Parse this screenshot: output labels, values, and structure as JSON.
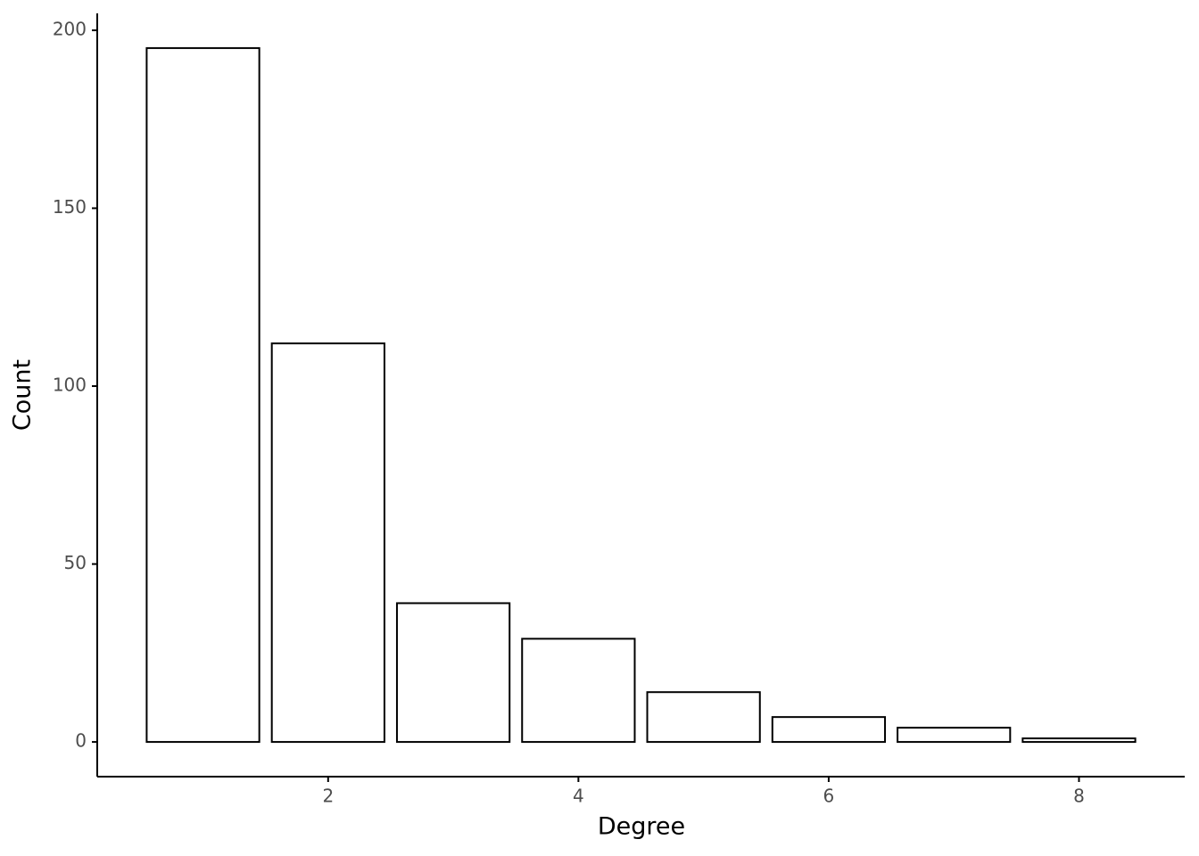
{
  "chart_data": {
    "type": "bar",
    "x_label": "Degree",
    "y_label": "Count",
    "x": [
      1,
      2,
      3,
      4,
      5,
      6,
      7,
      8
    ],
    "values": [
      195,
      112,
      39,
      29,
      14,
      7,
      4,
      1
    ],
    "fill": "#ffffff",
    "color": "#000000",
    "xlim": [
      0.155,
      8.845
    ],
    "xticks": [
      2,
      4,
      6,
      8
    ],
    "ylim": [
      -9.75,
      204.75
    ],
    "yticks": [
      0,
      50,
      100,
      150,
      200
    ],
    "grid": false
  }
}
